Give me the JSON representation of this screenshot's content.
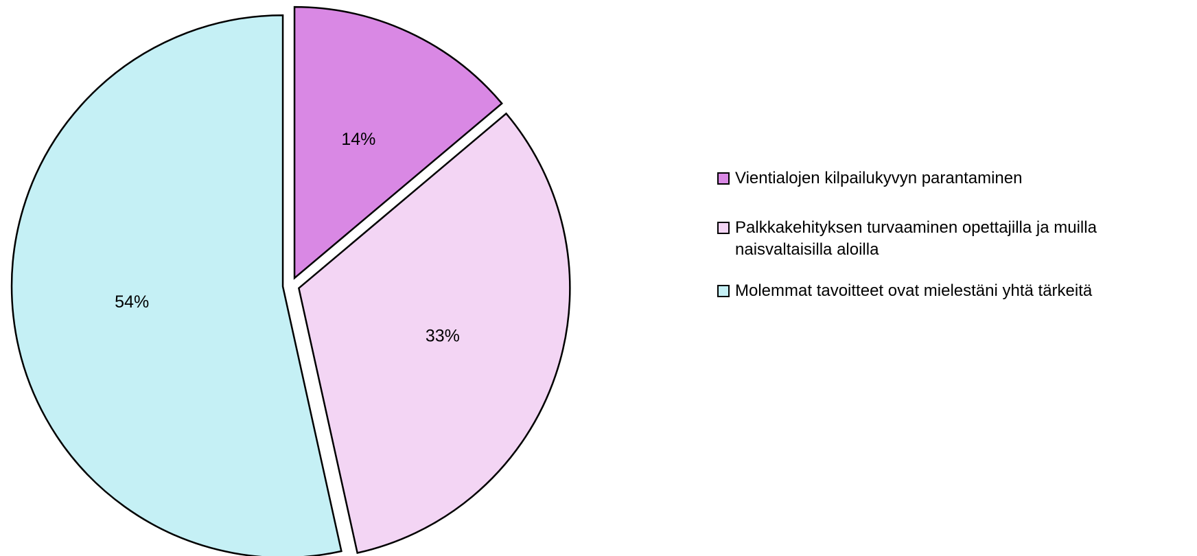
{
  "chart_data": {
    "type": "pie",
    "categories": [
      "Vientialojen kilpailukyvyn parantaminen",
      "Palkkakehityksen turvaaminen opettajilla ja muilla naisvaltaisilla aloilla",
      "Molemmat tavoitteet ovat mielestäni yhtä tärkeitä"
    ],
    "values": [
      14,
      33,
      54
    ],
    "value_labels": [
      "14%",
      "33%",
      "54%"
    ],
    "colors": [
      "#d988e4",
      "#f3d5f4",
      "#c5f0f5"
    ],
    "legend": "right"
  }
}
